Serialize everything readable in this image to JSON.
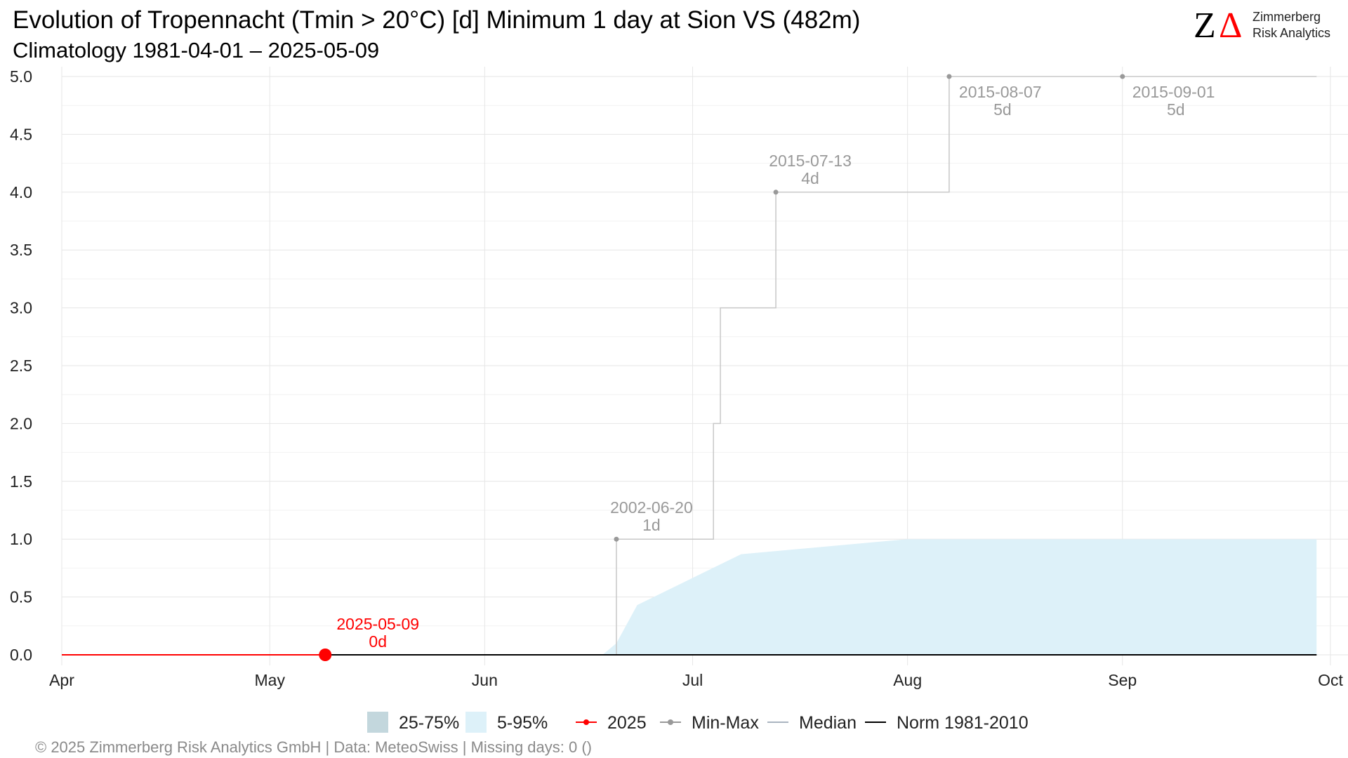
{
  "header": {
    "title": "Evolution of Tropennacht (Tmin > 20°C) [d] Minimum 1 day at Sion  VS (482m)",
    "subtitle": "Climatology 1981-04-01 – 2025-05-09"
  },
  "logo": {
    "mark_z": "Z",
    "mark_delta": "Δ",
    "line1": "Zimmerberg",
    "line2": "Risk Analytics",
    "color_z": "#000000",
    "color_delta": "#ff0000"
  },
  "footer": {
    "text": "©  2025 Zimmerberg Risk Analytics GmbH | Data: MeteoSwiss | Missing days: 0 ()"
  },
  "legend": {
    "items": [
      {
        "label": "25-75%",
        "kind": "box",
        "color": "#c3d7dd"
      },
      {
        "label": "5-95%",
        "kind": "box",
        "color": "#ddf1f9"
      },
      {
        "label": "2025",
        "kind": "line-dot",
        "color": "#ff0000"
      },
      {
        "label": "Min-Max",
        "kind": "line-dot",
        "color": "#999999"
      },
      {
        "label": "Median",
        "kind": "line",
        "color": "#aab4c0"
      },
      {
        "label": "Norm 1981-2010",
        "kind": "line",
        "color": "#000000"
      }
    ]
  },
  "chart_data": {
    "type": "line",
    "title": "Evolution of Tropennacht (Tmin > 20°C) [d] Minimum 1 day at Sion  VS (482m)",
    "subtitle": "Climatology 1981-04-01 – 2025-05-09",
    "xlabel": "",
    "ylabel": "",
    "xlim": [
      "2025-04-01",
      "2025-10-01"
    ],
    "ylim": [
      0,
      5
    ],
    "grid": true,
    "legend_position": "bottom",
    "x_ticks": [
      {
        "label": "Apr",
        "date": "2025-04-01"
      },
      {
        "label": "May",
        "date": "2025-05-01"
      },
      {
        "label": "Jun",
        "date": "2025-06-01"
      },
      {
        "label": "Jul",
        "date": "2025-07-01"
      },
      {
        "label": "Aug",
        "date": "2025-08-01"
      },
      {
        "label": "Sep",
        "date": "2025-09-01"
      },
      {
        "label": "Oct",
        "date": "2025-10-01"
      }
    ],
    "y_ticks": [
      "0.0",
      "0.5",
      "1.0",
      "1.5",
      "2.0",
      "2.5",
      "3.0",
      "3.5",
      "4.0",
      "4.5",
      "5.0"
    ],
    "series": [
      {
        "name": "5-95%",
        "kind": "band",
        "color": "#ddf1f9",
        "x": [
          "2025-06-18",
          "2025-06-20",
          "2025-06-23",
          "2025-07-08",
          "2025-08-01",
          "2025-09-01",
          "2025-09-29"
        ],
        "low": [
          0,
          0,
          0,
          0,
          0,
          0,
          0
        ],
        "high": [
          0,
          0.1,
          0.43,
          0.87,
          1.0,
          1.0,
          1.0
        ]
      },
      {
        "name": "Min-Max",
        "kind": "step",
        "color": "#c8c8c8",
        "x": [
          "2025-06-20",
          "2025-07-04",
          "2025-07-05",
          "2025-07-13",
          "2025-08-07",
          "2025-09-29"
        ],
        "y": [
          1,
          2,
          3,
          4,
          5,
          5
        ]
      },
      {
        "name": "Median",
        "kind": "line",
        "color": "#aab4c0",
        "x": [
          "2025-04-01",
          "2025-09-29"
        ],
        "y": [
          0,
          0
        ]
      },
      {
        "name": "Norm 1981-2010",
        "kind": "line",
        "color": "#000000",
        "x": [
          "2025-04-01",
          "2025-09-29"
        ],
        "y": [
          0,
          0
        ]
      },
      {
        "name": "2025",
        "kind": "line",
        "color": "#ff0000",
        "x": [
          "2025-04-01",
          "2025-05-09"
        ],
        "y": [
          0,
          0
        ]
      }
    ],
    "minmax_points": [
      {
        "date": "2025-06-20",
        "value": 1,
        "label_date": "2002-06-20",
        "label_value": "1d"
      },
      {
        "date": "2025-07-13",
        "value": 4,
        "label_date": "2015-07-13",
        "label_value": "4d"
      },
      {
        "date": "2025-08-07",
        "value": 5,
        "label_date": "2015-08-07",
        "label_value": "5d"
      },
      {
        "date": "2025-09-01",
        "value": 5,
        "label_date": "2015-09-01",
        "label_value": "5d"
      }
    ],
    "current_point": {
      "date": "2025-05-09",
      "value": 0,
      "label_date": "2025-05-09",
      "label_value": "0d",
      "color": "#ff0000"
    }
  }
}
